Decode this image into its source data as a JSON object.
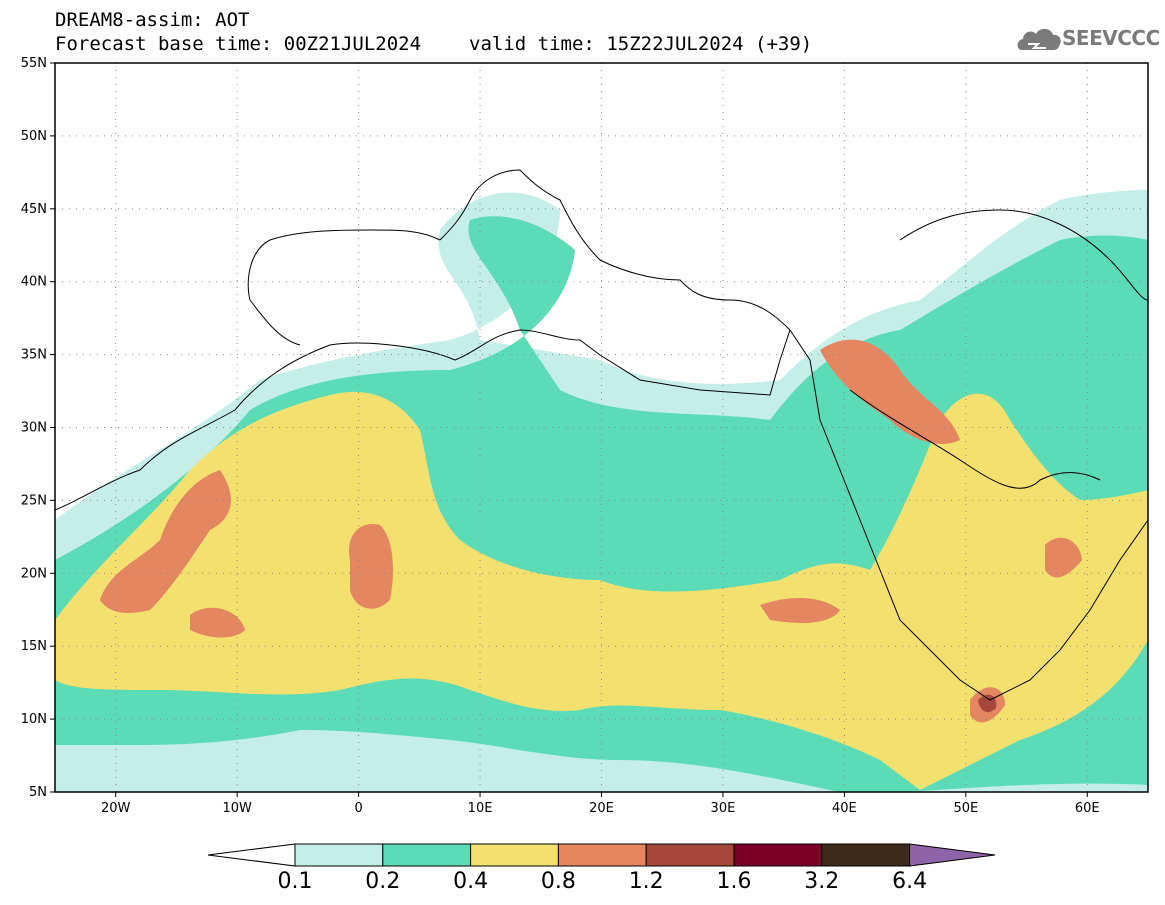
{
  "header": {
    "line1": "DREAM8-assim: AOT",
    "base_time": "Forecast base time: 00Z21JUL2024",
    "valid_time": "valid time: 15Z22JUL2024 (+39)",
    "logo_text": "SEEVCCC"
  },
  "map": {
    "lon_range": [
      -25,
      65
    ],
    "lat_range": [
      5,
      55
    ],
    "lat_ticks": [
      "5N",
      "10N",
      "15N",
      "20N",
      "25N",
      "30N",
      "35N",
      "40N",
      "45N",
      "50N",
      "55N"
    ],
    "lon_ticks": [
      "20W",
      "10W",
      "0",
      "10E",
      "20E",
      "30E",
      "40E",
      "50E",
      "60E"
    ],
    "colors": {
      "land_outline": "#000000",
      "sea_background": "#ffffff"
    }
  },
  "colorbar": {
    "labels": [
      "0.1",
      "0.2",
      "0.4",
      "0.8",
      "1.2",
      "1.6",
      "3.2",
      "6.4"
    ],
    "colors": [
      "#c6eee8",
      "#5bdcb6",
      "#f3e06f",
      "#e4865f",
      "#a5473b",
      "#7a0025",
      "#3e2a1a",
      "#8e63a8"
    ],
    "under_color": "#ffffff"
  }
}
